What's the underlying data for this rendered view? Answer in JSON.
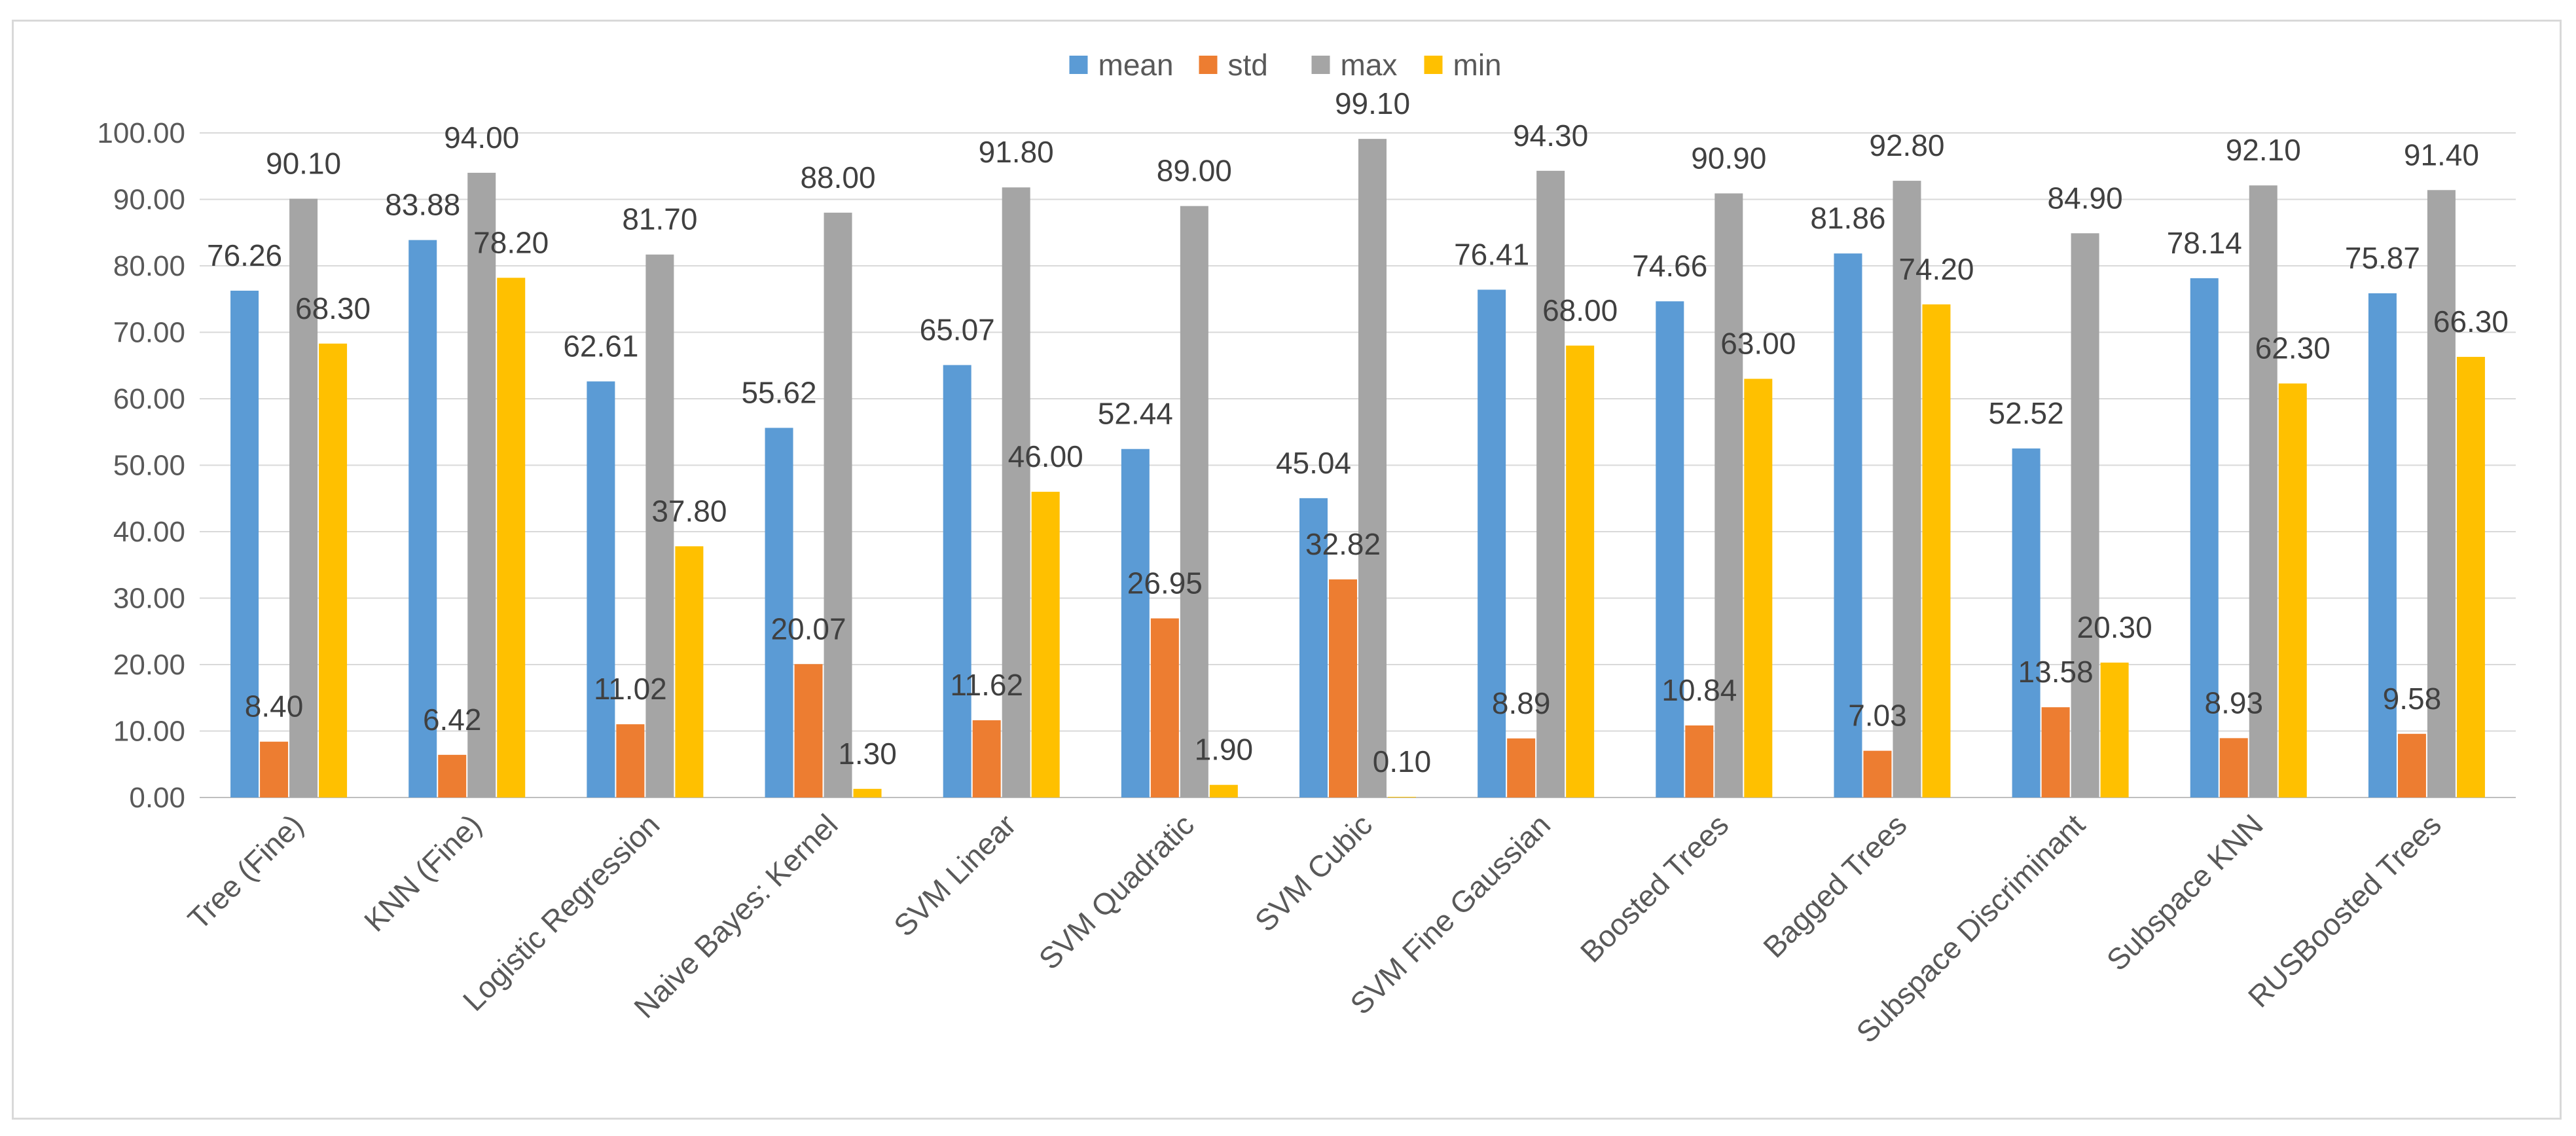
{
  "chart_data": {
    "type": "bar",
    "title": "",
    "xlabel": "",
    "ylabel": "",
    "ylim": [
      0,
      100
    ],
    "yticks": [
      "0.00",
      "10.00",
      "20.00",
      "30.00",
      "40.00",
      "50.00",
      "60.00",
      "70.00",
      "80.00",
      "90.00",
      "100.00"
    ],
    "grid": true,
    "legend_position": "top-center",
    "categories": [
      "Tree (Fine)",
      "KNN (Fine)",
      "Logistic Regression",
      "Naive Bayes: Kernel",
      "SVM Linear",
      "SVM Quadratic",
      "SVM Cubic",
      "SVM Fine Gaussian",
      "Boosted Trees",
      "Bagged Trees",
      "Subspace Discriminant",
      "Subspace KNN",
      "RUSBoosted Trees"
    ],
    "series": [
      {
        "name": "mean",
        "color": "#5B9BD5",
        "values": [
          76.26,
          83.88,
          62.61,
          55.62,
          65.07,
          52.44,
          45.04,
          76.41,
          74.66,
          81.86,
          52.52,
          78.14,
          75.87
        ],
        "labels": [
          "76.26",
          "83.88",
          "62.61",
          "55.62",
          "65.07",
          "52.44",
          "45.04",
          "76.41",
          "74.66",
          "81.86",
          "52.52",
          "78.14",
          "75.87"
        ]
      },
      {
        "name": "std",
        "color": "#ED7D31",
        "values": [
          8.4,
          6.42,
          11.02,
          20.07,
          11.62,
          26.95,
          32.82,
          8.89,
          10.84,
          7.03,
          13.58,
          8.93,
          9.58
        ],
        "labels": [
          "8.40",
          "6.42",
          "11.02",
          "20.07",
          "11.62",
          "26.95",
          "32.82",
          "8.89",
          "10.84",
          "7.03",
          "13.58",
          "8.93",
          "9.58"
        ]
      },
      {
        "name": "max",
        "color": "#A5A5A5",
        "values": [
          90.1,
          94.0,
          81.7,
          88.0,
          91.8,
          89.0,
          99.1,
          94.3,
          90.9,
          92.8,
          84.9,
          92.1,
          91.4
        ],
        "labels": [
          "90.10",
          "94.00",
          "81.70",
          "88.00",
          "91.80",
          "89.00",
          "99.10",
          "94.30",
          "90.90",
          "92.80",
          "84.90",
          "92.10",
          "91.40"
        ]
      },
      {
        "name": "min",
        "color": "#FFC000",
        "values": [
          68.3,
          78.2,
          37.8,
          1.3,
          46.0,
          1.9,
          0.1,
          68.0,
          63.0,
          74.2,
          20.3,
          62.3,
          66.3
        ],
        "labels": [
          "68.30",
          "78.20",
          "37.80",
          "1.30",
          "46.00",
          "1.90",
          "0.10",
          "68.00",
          "63.00",
          "74.20",
          "20.30",
          "62.30",
          "66.30"
        ]
      }
    ]
  }
}
